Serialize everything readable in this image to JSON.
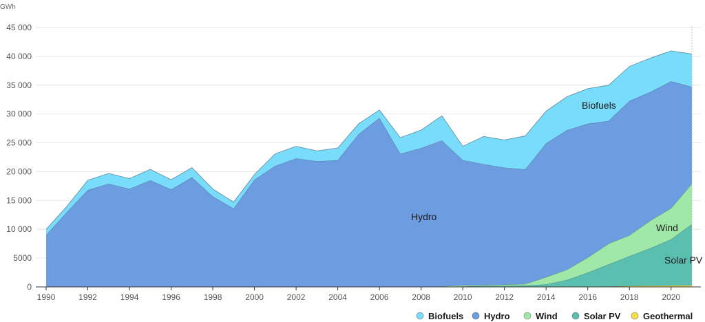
{
  "chart_data": {
    "type": "area",
    "stacked": true,
    "ylabel": "GWh",
    "ylim": [
      0,
      45000
    ],
    "yticks": [
      0,
      5000,
      10000,
      15000,
      20000,
      25000,
      30000,
      35000,
      40000,
      45000
    ],
    "ytick_labels": [
      "0",
      "5000",
      "10 000",
      "15 000",
      "20 000",
      "25 000",
      "30 000",
      "35 000",
      "40 000",
      "45 000"
    ],
    "xlim": [
      1990,
      2021
    ],
    "xticks": [
      1990,
      1992,
      1994,
      1996,
      1998,
      2000,
      2002,
      2004,
      2006,
      2008,
      2010,
      2012,
      2014,
      2016,
      2018,
      2020
    ],
    "x": [
      1990,
      1991,
      1992,
      1993,
      1994,
      1995,
      1996,
      1997,
      1998,
      1999,
      2000,
      2001,
      2002,
      2003,
      2004,
      2005,
      2006,
      2007,
      2008,
      2009,
      2010,
      2011,
      2012,
      2013,
      2014,
      2015,
      2016,
      2017,
      2018,
      2019,
      2020,
      2021
    ],
    "grid": true,
    "legend_position": "bottom-right",
    "series": [
      {
        "name": "Geothermal",
        "color": "#f5e04a",
        "values": [
          0,
          0,
          0,
          0,
          0,
          0,
          0,
          0,
          0,
          0,
          0,
          0,
          0,
          0,
          0,
          0,
          0,
          0,
          0,
          0,
          0,
          0,
          0,
          0,
          0,
          0,
          0,
          100,
          150,
          200,
          250,
          300
        ]
      },
      {
        "name": "Solar PV",
        "color": "#5bbfb0",
        "values": [
          0,
          0,
          0,
          0,
          0,
          0,
          0,
          0,
          0,
          0,
          0,
          0,
          0,
          0,
          0,
          0,
          0,
          0,
          0,
          0,
          100,
          150,
          200,
          250,
          450,
          1200,
          2500,
          3800,
          5200,
          6500,
          8000,
          10600
        ]
      },
      {
        "name": "Wind",
        "color": "#9fe8a8",
        "values": [
          0,
          0,
          0,
          0,
          0,
          0,
          0,
          0,
          0,
          0,
          0,
          0,
          0,
          0,
          0,
          0,
          0,
          0,
          0,
          100,
          200,
          150,
          200,
          250,
          1250,
          1800,
          2600,
          3600,
          3600,
          4800,
          5400,
          7000
        ]
      },
      {
        "name": "Hydro",
        "color": "#6c9de0",
        "values": [
          9000,
          13000,
          16800,
          17900,
          17000,
          18500,
          16900,
          19000,
          15700,
          13600,
          18600,
          21000,
          22300,
          21800,
          22000,
          26500,
          29300,
          23100,
          24100,
          25300,
          21700,
          21000,
          20300,
          19900,
          23200,
          24200,
          23200,
          21300,
          23300,
          22300,
          22000,
          16800
        ]
      },
      {
        "name": "Biofuels",
        "color": "#79dcfa",
        "values": [
          1000,
          1000,
          1700,
          1800,
          1800,
          1900,
          1700,
          1700,
          1300,
          1100,
          900,
          2100,
          2100,
          1800,
          2100,
          1800,
          1400,
          2800,
          3100,
          4300,
          2400,
          4800,
          4800,
          5800,
          5600,
          5800,
          6100,
          6200,
          6000,
          5900,
          5300,
          5700
        ]
      }
    ],
    "annotations": [
      "Biofuels",
      "Hydro",
      "Wind",
      "Solar PV"
    ]
  }
}
